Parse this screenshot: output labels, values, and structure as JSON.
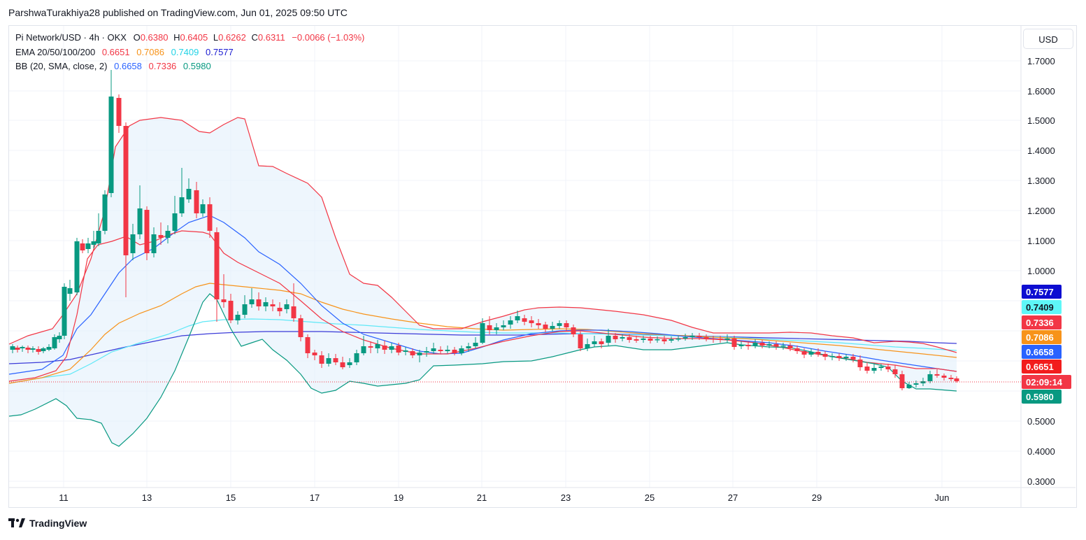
{
  "header": {
    "attribution": "ParshwaTurakhiya28 published on TradingView.com, Jun 01, 2025 09:50 UTC"
  },
  "legend": {
    "symbol": "Pi Network/USD · 4h · OKX",
    "o_label": "O",
    "o": "0.6380",
    "h_label": "H",
    "h": "0.6405",
    "l_label": "L",
    "l": "0.6262",
    "c_label": "C",
    "c": "0.6311",
    "change": "−0.0066 (−1.03%)",
    "ema_label": "EMA 20/50/100/200",
    "ema20": "0.6651",
    "ema50": "0.7086",
    "ema100": "0.7409",
    "ema200": "0.7577",
    "bb_label": "BB (20, SMA, close, 2)",
    "bb_basis": "0.6658",
    "bb_upper": "0.7336",
    "bb_lower": "0.5980"
  },
  "currency": "USD",
  "footer": {
    "brand": "TradingView"
  },
  "colors": {
    "up": "#089981",
    "down": "#f23645",
    "ema20": "#f23645",
    "ema50": "#f7931a",
    "ema100": "#5ee8f7",
    "ema200": "#3b3bd8",
    "bb_basis": "#2962ff",
    "bb_upper": "#f23645",
    "bb_lower": "#089981",
    "bb_fill": "#e3f0fb"
  },
  "chart_data": {
    "type": "candlestick",
    "y_tick_labels": [
      "1.7000",
      "1.6000",
      "1.5000",
      "1.4000",
      "1.3000",
      "1.2000",
      "1.1000",
      "1.0000",
      "0.5000",
      "0.4000",
      "0.3000"
    ],
    "x_tick_labels": [
      "11",
      "13",
      "15",
      "17",
      "19",
      "21",
      "23",
      "25",
      "27",
      "29",
      "Jun"
    ],
    "price_tags": [
      {
        "label": "0.7577",
        "color": "#0d0dd1",
        "text": "#ffffff"
      },
      {
        "label": "0.7409",
        "color": "#5ef7f7",
        "text": "#131722"
      },
      {
        "label": "0.7336",
        "color": "#f23645",
        "text": "#ffffff"
      },
      {
        "label": "0.7086",
        "color": "#f7931a",
        "text": "#ffffff"
      },
      {
        "label": "0.6658",
        "color": "#2962ff",
        "text": "#ffffff"
      },
      {
        "label": "0.6651",
        "color": "#f21d1d",
        "text": "#ffffff"
      },
      {
        "label": "02:09:14",
        "color": "#f23645",
        "text": "#ffffff"
      },
      {
        "label": "0.5980",
        "color": "#089981",
        "text": "#ffffff"
      }
    ]
  }
}
